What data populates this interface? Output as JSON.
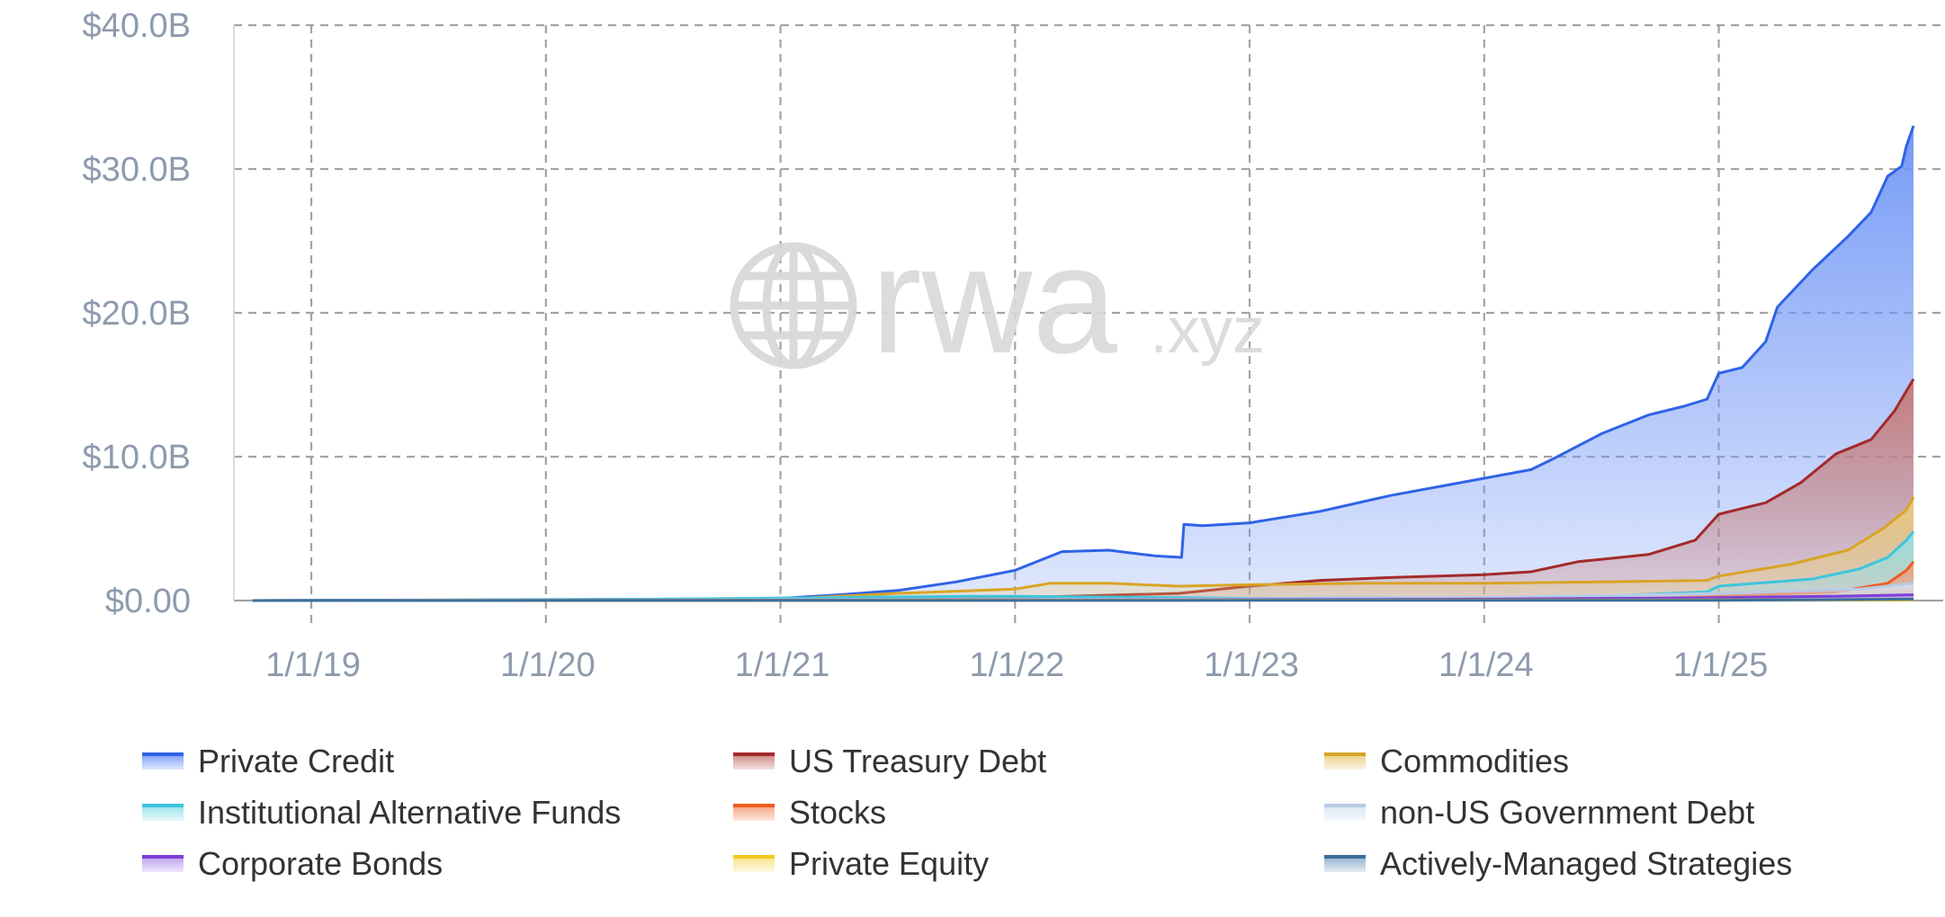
{
  "watermark": {
    "brand": "rwa",
    "suffix": ".xyz"
  },
  "chart_data": {
    "type": "area",
    "stacked": false,
    "grid": true,
    "legend_position": "bottom",
    "y_ticks": [
      "$0.00",
      "$10.0B",
      "$20.0B",
      "$30.0B",
      "$40.0B"
    ],
    "y_tick_values": [
      0,
      10,
      20,
      30,
      40
    ],
    "y_unit": "billions USD",
    "ylim": [
      0,
      40
    ],
    "x_ticks": [
      "1/1/19",
      "1/1/20",
      "1/1/21",
      "1/1/22",
      "1/1/23",
      "1/1/24",
      "1/1/25"
    ],
    "x_tick_values": [
      2019.0,
      2020.0,
      2021.0,
      2022.0,
      2023.0,
      2024.0,
      2025.0
    ],
    "xlim": [
      2018.67,
      2025.88
    ],
    "series": [
      {
        "name": "Private Credit",
        "color": "#2f63e6",
        "fill": "#6f95f5",
        "points": [
          [
            2018.75,
            0.0
          ],
          [
            2020.0,
            0.05
          ],
          [
            2021.0,
            0.15
          ],
          [
            2021.25,
            0.4
          ],
          [
            2021.5,
            0.7
          ],
          [
            2021.75,
            1.3
          ],
          [
            2022.0,
            2.1
          ],
          [
            2022.2,
            3.4
          ],
          [
            2022.4,
            3.5
          ],
          [
            2022.5,
            3.3
          ],
          [
            2022.6,
            3.1
          ],
          [
            2022.71,
            3.0
          ],
          [
            2022.72,
            5.3
          ],
          [
            2022.8,
            5.2
          ],
          [
            2023.0,
            5.4
          ],
          [
            2023.3,
            6.2
          ],
          [
            2023.6,
            7.3
          ],
          [
            2024.0,
            8.5
          ],
          [
            2024.2,
            9.1
          ],
          [
            2024.3,
            9.9
          ],
          [
            2024.5,
            11.6
          ],
          [
            2024.7,
            12.9
          ],
          [
            2024.85,
            13.5
          ],
          [
            2024.95,
            14.0
          ],
          [
            2025.0,
            15.8
          ],
          [
            2025.1,
            16.2
          ],
          [
            2025.2,
            18.0
          ],
          [
            2025.25,
            20.4
          ],
          [
            2025.4,
            23.0
          ],
          [
            2025.55,
            25.3
          ],
          [
            2025.65,
            27.0
          ],
          [
            2025.72,
            29.5
          ],
          [
            2025.78,
            30.2
          ],
          [
            2025.8,
            31.6
          ],
          [
            2025.83,
            33.0
          ]
        ]
      },
      {
        "name": "US Treasury Debt",
        "color": "#a32a2a",
        "fill": "#c77a75",
        "points": [
          [
            2018.75,
            0.0
          ],
          [
            2021.0,
            0.05
          ],
          [
            2022.0,
            0.2
          ],
          [
            2022.7,
            0.5
          ],
          [
            2023.0,
            1.0
          ],
          [
            2023.3,
            1.4
          ],
          [
            2023.6,
            1.6
          ],
          [
            2024.0,
            1.8
          ],
          [
            2024.2,
            2.0
          ],
          [
            2024.4,
            2.7
          ],
          [
            2024.7,
            3.2
          ],
          [
            2024.9,
            4.2
          ],
          [
            2025.0,
            6.0
          ],
          [
            2025.2,
            6.8
          ],
          [
            2025.35,
            8.2
          ],
          [
            2025.5,
            10.2
          ],
          [
            2025.65,
            11.2
          ],
          [
            2025.75,
            13.2
          ],
          [
            2025.83,
            15.4
          ]
        ]
      },
      {
        "name": "Commodities",
        "color": "#d9a425",
        "fill": "#ebcc78",
        "points": [
          [
            2018.75,
            0.0
          ],
          [
            2021.0,
            0.1
          ],
          [
            2021.5,
            0.5
          ],
          [
            2022.0,
            0.8
          ],
          [
            2022.15,
            1.2
          ],
          [
            2022.4,
            1.2
          ],
          [
            2022.7,
            1.0
          ],
          [
            2023.0,
            1.1
          ],
          [
            2023.5,
            1.2
          ],
          [
            2024.0,
            1.2
          ],
          [
            2024.5,
            1.3
          ],
          [
            2024.95,
            1.4
          ],
          [
            2025.0,
            1.7
          ],
          [
            2025.3,
            2.5
          ],
          [
            2025.55,
            3.5
          ],
          [
            2025.7,
            5.0
          ],
          [
            2025.8,
            6.3
          ],
          [
            2025.83,
            7.2
          ]
        ]
      },
      {
        "name": "Institutional Alternative Funds",
        "color": "#3ec5dc",
        "fill": "#8fe0ea",
        "points": [
          [
            2018.75,
            0.0
          ],
          [
            2020.5,
            0.1
          ],
          [
            2021.2,
            0.2
          ],
          [
            2021.8,
            0.3
          ],
          [
            2022.0,
            0.3
          ],
          [
            2022.7,
            0.2
          ],
          [
            2023.0,
            0.15
          ],
          [
            2024.0,
            0.2
          ],
          [
            2024.5,
            0.3
          ],
          [
            2024.95,
            0.6
          ],
          [
            2025.0,
            1.0
          ],
          [
            2025.4,
            1.5
          ],
          [
            2025.6,
            2.2
          ],
          [
            2025.72,
            3.0
          ],
          [
            2025.8,
            4.2
          ],
          [
            2025.83,
            4.8
          ]
        ]
      },
      {
        "name": "Stocks",
        "color": "#f05a1f",
        "fill": "#f59a70",
        "points": [
          [
            2018.75,
            0.0
          ],
          [
            2024.5,
            0.05
          ],
          [
            2025.0,
            0.3
          ],
          [
            2025.5,
            0.6
          ],
          [
            2025.72,
            1.2
          ],
          [
            2025.8,
            2.1
          ],
          [
            2025.83,
            2.7
          ]
        ]
      },
      {
        "name": "non-US Government Debt",
        "color": "#b8cbe6",
        "fill": "#d6e2f2",
        "points": [
          [
            2018.75,
            0.0
          ],
          [
            2022.7,
            0.1
          ],
          [
            2024.0,
            0.2
          ],
          [
            2025.0,
            0.5
          ],
          [
            2025.6,
            0.8
          ],
          [
            2025.83,
            1.2
          ]
        ]
      },
      {
        "name": "Corporate Bonds",
        "color": "#7a3fd9",
        "fill": "#b596ee",
        "points": [
          [
            2018.75,
            0.0
          ],
          [
            2022.7,
            0.05
          ],
          [
            2024.0,
            0.1
          ],
          [
            2025.0,
            0.2
          ],
          [
            2025.5,
            0.3
          ],
          [
            2025.83,
            0.4
          ]
        ]
      },
      {
        "name": "Private Equity",
        "color": "#f2c81b",
        "fill": "#f7e07a",
        "points": [
          [
            2018.75,
            0.0
          ],
          [
            2025.83,
            0.05
          ]
        ]
      },
      {
        "name": "Actively-Managed Strategies",
        "color": "#3d6e99",
        "fill": "#86a8c8",
        "points": [
          [
            2018.75,
            0.0
          ],
          [
            2025.0,
            0.02
          ],
          [
            2025.83,
            0.1
          ]
        ]
      }
    ]
  }
}
